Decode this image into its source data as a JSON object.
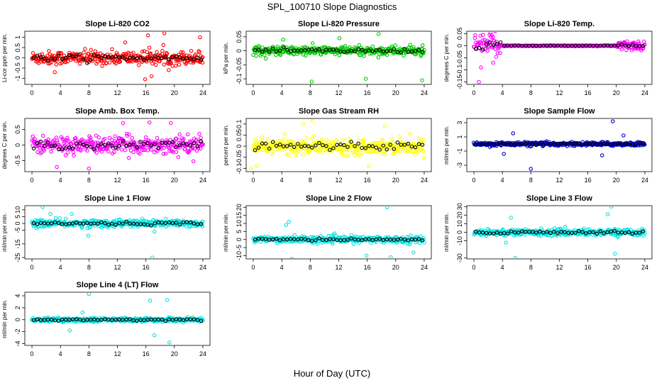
{
  "title": "SPL_100710  Slope Diagnostics",
  "xlabel": "Hour of Day (UTC)",
  "chart_data": [
    {
      "type": "scatter",
      "title": "Slope Li-820 CO2",
      "ylabel": "Li-cor ppm per min.",
      "ylim": [
        -1.3,
        1.3
      ],
      "yticks": [
        -1,
        -0.5,
        0,
        0.5,
        1
      ],
      "xlim": [
        -1,
        25
      ],
      "xticks": [
        0,
        4,
        8,
        12,
        16,
        20,
        24
      ],
      "color": "#ff0000",
      "spread": 0.3,
      "outliers": [
        [
          3.2,
          -0.7
        ],
        [
          16.3,
          1.1
        ],
        [
          16.8,
          -0.9
        ],
        [
          18.6,
          1.2
        ],
        [
          19.2,
          -0.6
        ],
        [
          23.6,
          1.0
        ],
        [
          15.9,
          -1.05
        ],
        [
          13.1,
          0.75
        ]
      ]
    },
    {
      "type": "scatter",
      "title": "Slope Li-820 Pressure",
      "ylabel": "kPa per min.",
      "ylim": [
        -0.12,
        0.07
      ],
      "yticks": [
        -0.1,
        -0.05,
        0,
        0.05
      ],
      "xlim": [
        -1,
        25
      ],
      "xticks": [
        0,
        4,
        8,
        12,
        16,
        20,
        24
      ],
      "color": "#00cc00",
      "spread": 0.015,
      "outliers": [
        [
          8.2,
          -0.11
        ],
        [
          15.8,
          -0.1
        ],
        [
          23.7,
          -0.105
        ],
        [
          17.6,
          0.06
        ],
        [
          12.1,
          0.045
        ],
        [
          4.2,
          0.04
        ]
      ]
    },
    {
      "type": "scatter",
      "title": "Slope Li-820 Temp.",
      "ylabel": "degrees C per min.",
      "ylim": [
        -0.16,
        0.06
      ],
      "yticks": [
        -0.15,
        -0.1,
        -0.05,
        0,
        0.05
      ],
      "xlim": [
        -1,
        25
      ],
      "xticks": [
        0,
        4,
        8,
        12,
        16,
        20,
        24
      ],
      "color": "#ff00ff",
      "spread": 0.002,
      "noisy_ranges": [
        [
          0,
          3.8,
          0.04
        ],
        [
          20,
          24,
          0.018
        ]
      ],
      "outliers": [
        [
          0.7,
          -0.15
        ],
        [
          3.0,
          0.06
        ],
        [
          2.2,
          0.045
        ],
        [
          1.0,
          -0.09
        ],
        [
          2.7,
          -0.07
        ]
      ]
    },
    {
      "type": "scatter",
      "title": "Slope Amb. Box Temp.",
      "ylabel": "degrees C per min.",
      "ylim": [
        -0.85,
        0.85
      ],
      "yticks": [
        -0.5,
        0,
        0.5
      ],
      "xlim": [
        -1,
        25
      ],
      "xticks": [
        0,
        4,
        8,
        12,
        16,
        20,
        24
      ],
      "color": "#ff00ff",
      "spread": 0.25,
      "outliers": [
        [
          8.0,
          -0.75
        ],
        [
          12.8,
          0.7
        ],
        [
          16.5,
          0.72
        ],
        [
          3.5,
          -0.7
        ],
        [
          19.5,
          0.7
        ]
      ]
    },
    {
      "type": "scatter",
      "title": "Slope Gas Stream RH",
      "ylabel": "percent per min.",
      "ylim": [
        -0.115,
        0.125
      ],
      "yticks": [
        -0.1,
        -0.05,
        0,
        0.05,
        0.1
      ],
      "xlim": [
        -1,
        25
      ],
      "xticks": [
        0,
        4,
        8,
        12,
        16,
        20,
        24
      ],
      "color": "#ffff00",
      "spread": 0.03,
      "outliers": [
        [
          -0.3,
          -0.1
        ],
        [
          0.5,
          -0.09
        ],
        [
          8.3,
          0.115
        ],
        [
          7.0,
          0.1
        ],
        [
          16.2,
          -0.09
        ],
        [
          18.5,
          0.09
        ]
      ]
    },
    {
      "type": "scatter",
      "title": "Slope Sample Flow",
      "ylabel": "ml/min per min.",
      "ylim": [
        -3.9,
        3.6
      ],
      "yticks": [
        -3,
        -1,
        1,
        3
      ],
      "xlim": [
        -1,
        25
      ],
      "xticks": [
        0,
        4,
        8,
        12,
        16,
        20,
        24
      ],
      "color": "#0000cc",
      "spread": 0.25,
      "outliers": [
        [
          8.0,
          -3.5
        ],
        [
          19.5,
          3.2
        ],
        [
          5.5,
          1.5
        ],
        [
          18.0,
          -1.6
        ],
        [
          4.2,
          -1.4
        ],
        [
          21.0,
          1.2
        ]
      ]
    },
    {
      "type": "scatter",
      "title": "Slope Line 1 Flow",
      "ylabel": "ml/min per min.",
      "ylim": [
        -26,
        13
      ],
      "yticks": [
        -25,
        -15,
        -5,
        0,
        5,
        10
      ],
      "xlim": [
        -1,
        25
      ],
      "xticks": [
        0,
        4,
        8,
        12,
        16,
        20,
        24
      ],
      "color": "#00e5e5",
      "spread": 2.5,
      "outliers": [
        [
          1.5,
          12
        ],
        [
          16.9,
          -25
        ],
        [
          7.9,
          -9
        ],
        [
          2.6,
          7
        ],
        [
          5.6,
          7
        ],
        [
          17.2,
          -6
        ]
      ]
    },
    {
      "type": "scatter",
      "title": "Slope Line 2 Flow",
      "ylabel": "ml/min per min.",
      "ylim": [
        -12,
        21
      ],
      "yticks": [
        -10,
        -5,
        0,
        5,
        10,
        15,
        20
      ],
      "xlim": [
        -1,
        25
      ],
      "xticks": [
        0,
        4,
        8,
        12,
        16,
        20,
        24
      ],
      "color": "#00e5e5",
      "spread": 1.8,
      "outliers": [
        [
          5.0,
          11
        ],
        [
          5.4,
          -12
        ],
        [
          18.8,
          20
        ],
        [
          15.9,
          -10
        ],
        [
          19.3,
          -11
        ],
        [
          4.6,
          9
        ],
        [
          22.5,
          -8
        ]
      ]
    },
    {
      "type": "scatter",
      "title": "Slope Line 3 Flow",
      "ylabel": "ml/min per min.",
      "ylim": [
        -31,
        31
      ],
      "yticks": [
        -30,
        -10,
        0,
        10,
        20,
        30
      ],
      "xlim": [
        -1,
        25
      ],
      "xticks": [
        0,
        4,
        8,
        12,
        16,
        20,
        24
      ],
      "color": "#00e5e5",
      "spread": 3.5,
      "outliers": [
        [
          5.8,
          -30
        ],
        [
          19.3,
          30
        ],
        [
          5.2,
          17
        ],
        [
          18.8,
          21
        ],
        [
          19.8,
          -25
        ],
        [
          4.5,
          -12
        ]
      ]
    },
    {
      "type": "scatter",
      "title": "Slope Line 4 (LT) Flow",
      "ylabel": "ml/min per min.",
      "ylim": [
        -4.3,
        4.6
      ],
      "yticks": [
        -4,
        -2,
        0,
        2,
        4
      ],
      "xlim": [
        -1,
        25
      ],
      "xticks": [
        0,
        4,
        8,
        12,
        16,
        20,
        24
      ],
      "color": "#00e5e5",
      "spread": 0.3,
      "outliers": [
        [
          8.0,
          4.3
        ],
        [
          19.3,
          -3.8
        ],
        [
          19.0,
          3.3
        ],
        [
          5.3,
          -1.8
        ],
        [
          16.6,
          3.2
        ],
        [
          17.2,
          -2.6
        ],
        [
          7.1,
          1.2
        ]
      ]
    }
  ]
}
